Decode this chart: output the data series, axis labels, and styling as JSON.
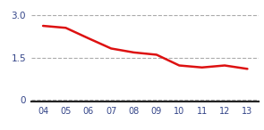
{
  "x": [
    0,
    1,
    2,
    3,
    4,
    5,
    6,
    7,
    8,
    9
  ],
  "x_labels": [
    "04",
    "05",
    "06",
    "07",
    "08",
    "09",
    "10",
    "11",
    "12",
    "13"
  ],
  "y": [
    2.62,
    2.55,
    2.18,
    1.82,
    1.68,
    1.6,
    1.22,
    1.15,
    1.22,
    1.1
  ],
  "line_color": "#dd1111",
  "line_width": 1.8,
  "yticks": [
    0,
    1.5,
    3.0
  ],
  "ylim": [
    -0.05,
    3.35
  ],
  "xlim": [
    -0.5,
    9.5
  ],
  "grid_color": "#aaaaaa",
  "grid_linewidth": 0.8,
  "bg_color": "#ffffff",
  "tick_color": "#334488",
  "spine_color": "#222222",
  "xlabel_fontsize": 7.0,
  "ylabel_fontsize": 7.5
}
